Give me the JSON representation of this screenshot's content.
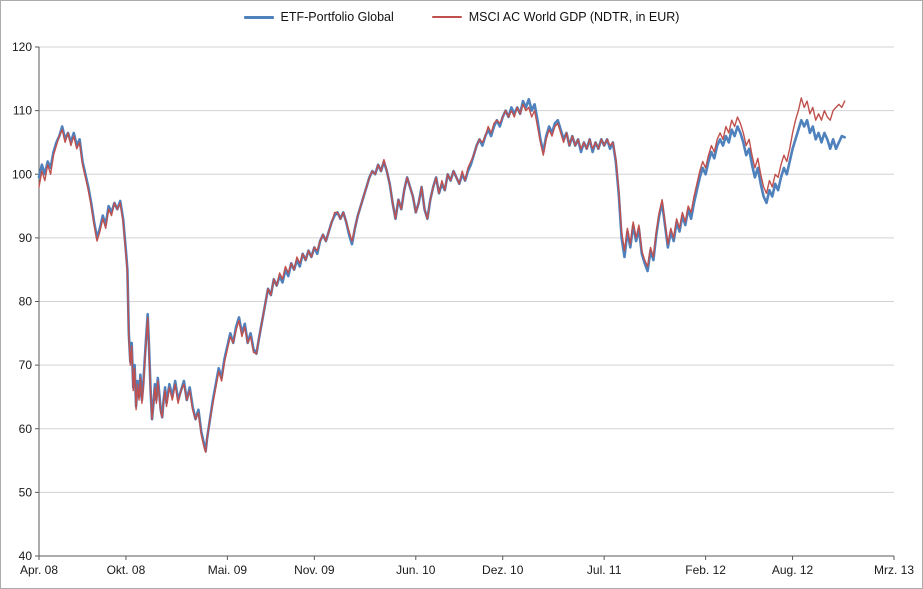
{
  "chart_data": {
    "type": "line",
    "title": "",
    "legend_position": "top",
    "grid": true,
    "x_axis": {
      "unit": "months since Apr. 08",
      "range": [
        0,
        59
      ],
      "ticks": [
        {
          "t": 0,
          "label": "Apr. 08"
        },
        {
          "t": 6,
          "label": "Okt. 08"
        },
        {
          "t": 13,
          "label": "Mai. 09"
        },
        {
          "t": 19,
          "label": "Nov. 09"
        },
        {
          "t": 26,
          "label": "Jun. 10"
        },
        {
          "t": 32,
          "label": "Dez. 10"
        },
        {
          "t": 39,
          "label": "Jul. 11"
        },
        {
          "t": 46,
          "label": "Feb. 12"
        },
        {
          "t": 52,
          "label": "Aug. 12"
        },
        {
          "t": 59,
          "label": "Mrz. 13"
        }
      ]
    },
    "y_axis": {
      "range": [
        40,
        120
      ],
      "step": 10,
      "ticks": [
        40,
        50,
        60,
        70,
        80,
        90,
        100,
        110,
        120
      ]
    },
    "series_meta": [
      {
        "name": "ETF-Portfolio Global",
        "color": "#4F81BD",
        "stroke_width": 2.6
      },
      {
        "name": "MSCI AC World GDP (NDTR, in EUR)",
        "color": "#C0504D",
        "stroke_width": 1.4
      }
    ],
    "points": [
      [
        0,
        99.5,
        98
      ],
      [
        0.2,
        101.5,
        100.5
      ],
      [
        0.4,
        100,
        99
      ],
      [
        0.6,
        102,
        101.5
      ],
      [
        0.8,
        101,
        100
      ],
      [
        1,
        103.5,
        103
      ],
      [
        1.2,
        105,
        104.5
      ],
      [
        1.4,
        106,
        106
      ],
      [
        1.6,
        107.5,
        107
      ],
      [
        1.8,
        105.5,
        105
      ],
      [
        2,
        106.5,
        106.5
      ],
      [
        2.2,
        105,
        104.5
      ],
      [
        2.4,
        106.5,
        106
      ],
      [
        2.6,
        104.5,
        104
      ],
      [
        2.8,
        105.5,
        105
      ],
      [
        3,
        102,
        101.5
      ],
      [
        3.2,
        100,
        99.5
      ],
      [
        3.4,
        98,
        97.5
      ],
      [
        3.6,
        95.5,
        95
      ],
      [
        3.8,
        92.5,
        92
      ],
      [
        4,
        90,
        89.5
      ],
      [
        4.2,
        91.5,
        91
      ],
      [
        4.4,
        93.5,
        93
      ],
      [
        4.6,
        92,
        91.5
      ],
      [
        4.8,
        95,
        94.5
      ],
      [
        5,
        94,
        93.5
      ],
      [
        5.2,
        95.5,
        95.5
      ],
      [
        5.4,
        94.5,
        94.5
      ],
      [
        5.6,
        95.8,
        95.5
      ],
      [
        5.8,
        93,
        92.5
      ],
      [
        6,
        88,
        87.5
      ],
      [
        6.1,
        85,
        84.5
      ],
      [
        6.2,
        75,
        74.5
      ],
      [
        6.3,
        70.5,
        70
      ],
      [
        6.4,
        73.5,
        73
      ],
      [
        6.5,
        66.5,
        66
      ],
      [
        6.6,
        70,
        69.5
      ],
      [
        6.7,
        63.5,
        63
      ],
      [
        6.8,
        67.5,
        67
      ],
      [
        6.9,
        65,
        64.5
      ],
      [
        7,
        68.5,
        68
      ],
      [
        7.1,
        64.5,
        64
      ],
      [
        7.2,
        67,
        66.5
      ],
      [
        7.3,
        71,
        70.5
      ],
      [
        7.4,
        74.5,
        74
      ],
      [
        7.5,
        78,
        77.5
      ],
      [
        7.6,
        72.5,
        72
      ],
      [
        7.7,
        66,
        65.5
      ],
      [
        7.8,
        61.5,
        61.5
      ],
      [
        7.9,
        64,
        64
      ],
      [
        8,
        67,
        66.5
      ],
      [
        8.1,
        64.5,
        64
      ],
      [
        8.2,
        68,
        67.5
      ],
      [
        8.3,
        65.5,
        65
      ],
      [
        8.4,
        63,
        62.5
      ],
      [
        8.5,
        61.8,
        61.8
      ],
      [
        8.6,
        64.5,
        64.5
      ],
      [
        8.7,
        66.5,
        66
      ],
      [
        8.8,
        64,
        63.5
      ],
      [
        9,
        67,
        66.5
      ],
      [
        9.2,
        65,
        64.5
      ],
      [
        9.4,
        67.5,
        67
      ],
      [
        9.6,
        64.5,
        64
      ],
      [
        9.8,
        66,
        66
      ],
      [
        10,
        67.5,
        67
      ],
      [
        10.2,
        64.5,
        64.5
      ],
      [
        10.4,
        66.5,
        66
      ],
      [
        10.6,
        63.5,
        63
      ],
      [
        10.8,
        61.5,
        61.5
      ],
      [
        11,
        63,
        62.5
      ],
      [
        11.2,
        59.5,
        59
      ],
      [
        11.4,
        57.5,
        57
      ],
      [
        11.5,
        56.5,
        56.3
      ],
      [
        11.6,
        58.5,
        58.5
      ],
      [
        11.8,
        61.5,
        61.5
      ],
      [
        12,
        64.5,
        64
      ],
      [
        12.2,
        67,
        66.5
      ],
      [
        12.4,
        69.5,
        69
      ],
      [
        12.6,
        68,
        67.5
      ],
      [
        12.8,
        71,
        70.5
      ],
      [
        13,
        73,
        72.5
      ],
      [
        13.2,
        75,
        74.5
      ],
      [
        13.4,
        73.5,
        73.5
      ],
      [
        13.6,
        76,
        75.5
      ],
      [
        13.8,
        77.5,
        77
      ],
      [
        14,
        75,
        74.5
      ],
      [
        14.2,
        76.5,
        76
      ],
      [
        14.4,
        73.5,
        73.5
      ],
      [
        14.6,
        75,
        74.5
      ],
      [
        14.8,
        72.5,
        72
      ],
      [
        15,
        71.8,
        71.8
      ],
      [
        15.2,
        74.5,
        74.5
      ],
      [
        15.4,
        77,
        77
      ],
      [
        15.6,
        79.5,
        79.5
      ],
      [
        15.8,
        82,
        82
      ],
      [
        16,
        81,
        81
      ],
      [
        16.2,
        83.5,
        83.5
      ],
      [
        16.4,
        82.5,
        82.5
      ],
      [
        16.6,
        84,
        84.5
      ],
      [
        16.8,
        83,
        83.5
      ],
      [
        17,
        85,
        85.5
      ],
      [
        17.2,
        84,
        84.5
      ],
      [
        17.4,
        86,
        86
      ],
      [
        17.6,
        85,
        85
      ],
      [
        17.8,
        86.5,
        87
      ],
      [
        18,
        85.5,
        86
      ],
      [
        18.2,
        87.5,
        87.5
      ],
      [
        18.4,
        86.5,
        86.5
      ],
      [
        18.6,
        88,
        88
      ],
      [
        18.8,
        87,
        87
      ],
      [
        19,
        88.5,
        88.5
      ],
      [
        19.2,
        87.5,
        88
      ],
      [
        19.4,
        89.5,
        89.5
      ],
      [
        19.6,
        90.5,
        90.5
      ],
      [
        19.8,
        89.5,
        89.5
      ],
      [
        20,
        91,
        91
      ],
      [
        20.2,
        92.5,
        92.5
      ],
      [
        20.4,
        93.5,
        94
      ],
      [
        20.6,
        94,
        94
      ],
      [
        20.8,
        93,
        93
      ],
      [
        21,
        94,
        94
      ],
      [
        21.2,
        92.5,
        92.5
      ],
      [
        21.4,
        90.5,
        91
      ],
      [
        21.6,
        89,
        89.5
      ],
      [
        21.8,
        91.5,
        91.5
      ],
      [
        22,
        93.5,
        93.5
      ],
      [
        22.2,
        95,
        95
      ],
      [
        22.4,
        96.5,
        96.5
      ],
      [
        22.6,
        98,
        98
      ],
      [
        22.8,
        99.5,
        99.5
      ],
      [
        23,
        100.5,
        100.5
      ],
      [
        23.2,
        100,
        100
      ],
      [
        23.4,
        101.5,
        101.5
      ],
      [
        23.6,
        100.5,
        100.5
      ],
      [
        23.8,
        102,
        102.3
      ],
      [
        24,
        100.5,
        100.5
      ],
      [
        24.2,
        98.5,
        98.5
      ],
      [
        24.4,
        95.5,
        95.5
      ],
      [
        24.6,
        93,
        93
      ],
      [
        24.8,
        96,
        96
      ],
      [
        25,
        94.5,
        94.5
      ],
      [
        25.2,
        97.5,
        97.5
      ],
      [
        25.4,
        99.5,
        99.5
      ],
      [
        25.6,
        98,
        98
      ],
      [
        25.8,
        96.5,
        96.5
      ],
      [
        26,
        94,
        94
      ],
      [
        26.2,
        95.5,
        95.5
      ],
      [
        26.4,
        98,
        98
      ],
      [
        26.6,
        94.5,
        94.5
      ],
      [
        26.8,
        93,
        93
      ],
      [
        27,
        96,
        96
      ],
      [
        27.2,
        98,
        98
      ],
      [
        27.4,
        99.5,
        99.5
      ],
      [
        27.6,
        97,
        97
      ],
      [
        27.8,
        98.5,
        99
      ],
      [
        28,
        97.5,
        97.5
      ],
      [
        28.2,
        100,
        100
      ],
      [
        28.4,
        99,
        99
      ],
      [
        28.6,
        100.5,
        100.5
      ],
      [
        28.8,
        99.5,
        99.5
      ],
      [
        29,
        98.5,
        98.5
      ],
      [
        29.2,
        100,
        100.5
      ],
      [
        29.4,
        99,
        99
      ],
      [
        29.6,
        100.5,
        101
      ],
      [
        29.8,
        101.5,
        102
      ],
      [
        30,
        103,
        103
      ],
      [
        30.2,
        104.5,
        104.5
      ],
      [
        30.4,
        105.5,
        105.5
      ],
      [
        30.6,
        104.5,
        105
      ],
      [
        30.8,
        106,
        106
      ],
      [
        31,
        107,
        107.5
      ],
      [
        31.2,
        106,
        106.5
      ],
      [
        31.4,
        107.5,
        108
      ],
      [
        31.6,
        108.5,
        108.5
      ],
      [
        31.8,
        107.5,
        108
      ],
      [
        32,
        109,
        109
      ],
      [
        32.2,
        110,
        110
      ],
      [
        32.4,
        109,
        109
      ],
      [
        32.6,
        110.5,
        110
      ],
      [
        32.8,
        109.5,
        109
      ],
      [
        33,
        110.5,
        110.5
      ],
      [
        33.2,
        109.5,
        109.5
      ],
      [
        33.4,
        111.5,
        111
      ],
      [
        33.6,
        110.5,
        110
      ],
      [
        33.8,
        111.8,
        110.5
      ],
      [
        34,
        110,
        109
      ],
      [
        34.2,
        111,
        110
      ],
      [
        34.4,
        108.5,
        107.5
      ],
      [
        34.6,
        105.5,
        105
      ],
      [
        34.8,
        103.5,
        103
      ],
      [
        35,
        106,
        105.5
      ],
      [
        35.2,
        107.5,
        107
      ],
      [
        35.4,
        106.5,
        106
      ],
      [
        35.6,
        108,
        107.5
      ],
      [
        35.8,
        108.5,
        108
      ],
      [
        36,
        107,
        106.5
      ],
      [
        36.2,
        105.5,
        105
      ],
      [
        36.4,
        106.5,
        106.5
      ],
      [
        36.6,
        104.5,
        104.5
      ],
      [
        36.8,
        106,
        106
      ],
      [
        37,
        104.5,
        104.5
      ],
      [
        37.2,
        105.5,
        105.5
      ],
      [
        37.4,
        103.5,
        104
      ],
      [
        37.6,
        105,
        105
      ],
      [
        37.8,
        104,
        104
      ],
      [
        38,
        105.5,
        105.5
      ],
      [
        38.2,
        103.5,
        104
      ],
      [
        38.4,
        105,
        105
      ],
      [
        38.6,
        104,
        104
      ],
      [
        38.8,
        105.5,
        105.5
      ],
      [
        39,
        104.5,
        104.5
      ],
      [
        39.2,
        105.5,
        105.5
      ],
      [
        39.4,
        104,
        104.5
      ],
      [
        39.6,
        105,
        105
      ],
      [
        39.8,
        102,
        102.5
      ],
      [
        40,
        97,
        97.5
      ],
      [
        40.2,
        90,
        91
      ],
      [
        40.4,
        87,
        88
      ],
      [
        40.6,
        91,
        91.5
      ],
      [
        40.8,
        88.5,
        89
      ],
      [
        41,
        92,
        92.5
      ],
      [
        41.2,
        89.5,
        90
      ],
      [
        41.4,
        91.5,
        92
      ],
      [
        41.6,
        87.5,
        88
      ],
      [
        41.8,
        86,
        86.5
      ],
      [
        42,
        84.8,
        85.5
      ],
      [
        42.2,
        88,
        88.5
      ],
      [
        42.4,
        86.5,
        87
      ],
      [
        42.6,
        90.5,
        91
      ],
      [
        42.8,
        93.5,
        94
      ],
      [
        43,
        95.5,
        96
      ],
      [
        43.2,
        92,
        92.5
      ],
      [
        43.4,
        88.5,
        89
      ],
      [
        43.6,
        91,
        91.5
      ],
      [
        43.8,
        89.5,
        90
      ],
      [
        44,
        92.5,
        93
      ],
      [
        44.2,
        91,
        91.5
      ],
      [
        44.4,
        93.5,
        94
      ],
      [
        44.6,
        92,
        92.5
      ],
      [
        44.8,
        94.5,
        95
      ],
      [
        45,
        93,
        94
      ],
      [
        45.2,
        95.5,
        96.5
      ],
      [
        45.4,
        97.5,
        98.5
      ],
      [
        45.6,
        99.5,
        100.5
      ],
      [
        45.8,
        101,
        102
      ],
      [
        46,
        100,
        101
      ],
      [
        46.2,
        102,
        103
      ],
      [
        46.4,
        103.5,
        104.5
      ],
      [
        46.6,
        102.5,
        103.5
      ],
      [
        46.8,
        104.5,
        105.5
      ],
      [
        47,
        105.5,
        106.5
      ],
      [
        47.2,
        104.5,
        105.5
      ],
      [
        47.4,
        106,
        107.5
      ],
      [
        47.6,
        105,
        106.5
      ],
      [
        47.8,
        107,
        108.5
      ],
      [
        48,
        106,
        107.5
      ],
      [
        48.2,
        107.5,
        109
      ],
      [
        48.4,
        106.5,
        108
      ],
      [
        48.6,
        105,
        106.5
      ],
      [
        48.8,
        103,
        104.5
      ],
      [
        49,
        104,
        105.5
      ],
      [
        49.2,
        101.5,
        103
      ],
      [
        49.4,
        99.5,
        101
      ],
      [
        49.6,
        101,
        102.5
      ],
      [
        49.8,
        98.5,
        100
      ],
      [
        50,
        96.5,
        98
      ],
      [
        50.2,
        95.5,
        97
      ],
      [
        50.4,
        97.5,
        99
      ],
      [
        50.6,
        96.5,
        98
      ],
      [
        50.8,
        98.5,
        100
      ],
      [
        51,
        97.5,
        99.5
      ],
      [
        51.2,
        99.5,
        101.5
      ],
      [
        51.4,
        101,
        103
      ],
      [
        51.6,
        100,
        102
      ],
      [
        51.8,
        102,
        104
      ],
      [
        52,
        104,
        106.5
      ],
      [
        52.2,
        105.5,
        108.5
      ],
      [
        52.4,
        107,
        110
      ],
      [
        52.6,
        108.5,
        112
      ],
      [
        52.8,
        107.5,
        110.5
      ],
      [
        53,
        108.5,
        111.5
      ],
      [
        53.2,
        106.5,
        109.5
      ],
      [
        53.4,
        107.5,
        110.5
      ],
      [
        53.6,
        105.5,
        108.5
      ],
      [
        53.8,
        106.5,
        109.5
      ],
      [
        54,
        105,
        108.5
      ],
      [
        54.2,
        106.5,
        110
      ],
      [
        54.4,
        105.5,
        109
      ],
      [
        54.6,
        104,
        108.5
      ],
      [
        54.8,
        105.5,
        110
      ],
      [
        55,
        104,
        110.5
      ],
      [
        55.2,
        105,
        111
      ],
      [
        55.4,
        106,
        110.5
      ],
      [
        55.6,
        105.8,
        111.5
      ]
    ]
  },
  "style": {
    "gridline_color": "#d3d3d3",
    "axis_color": "#595959",
    "tick_label_color": "#1a1a1a",
    "background": "#ffffff",
    "frame_border": "#ababab"
  }
}
